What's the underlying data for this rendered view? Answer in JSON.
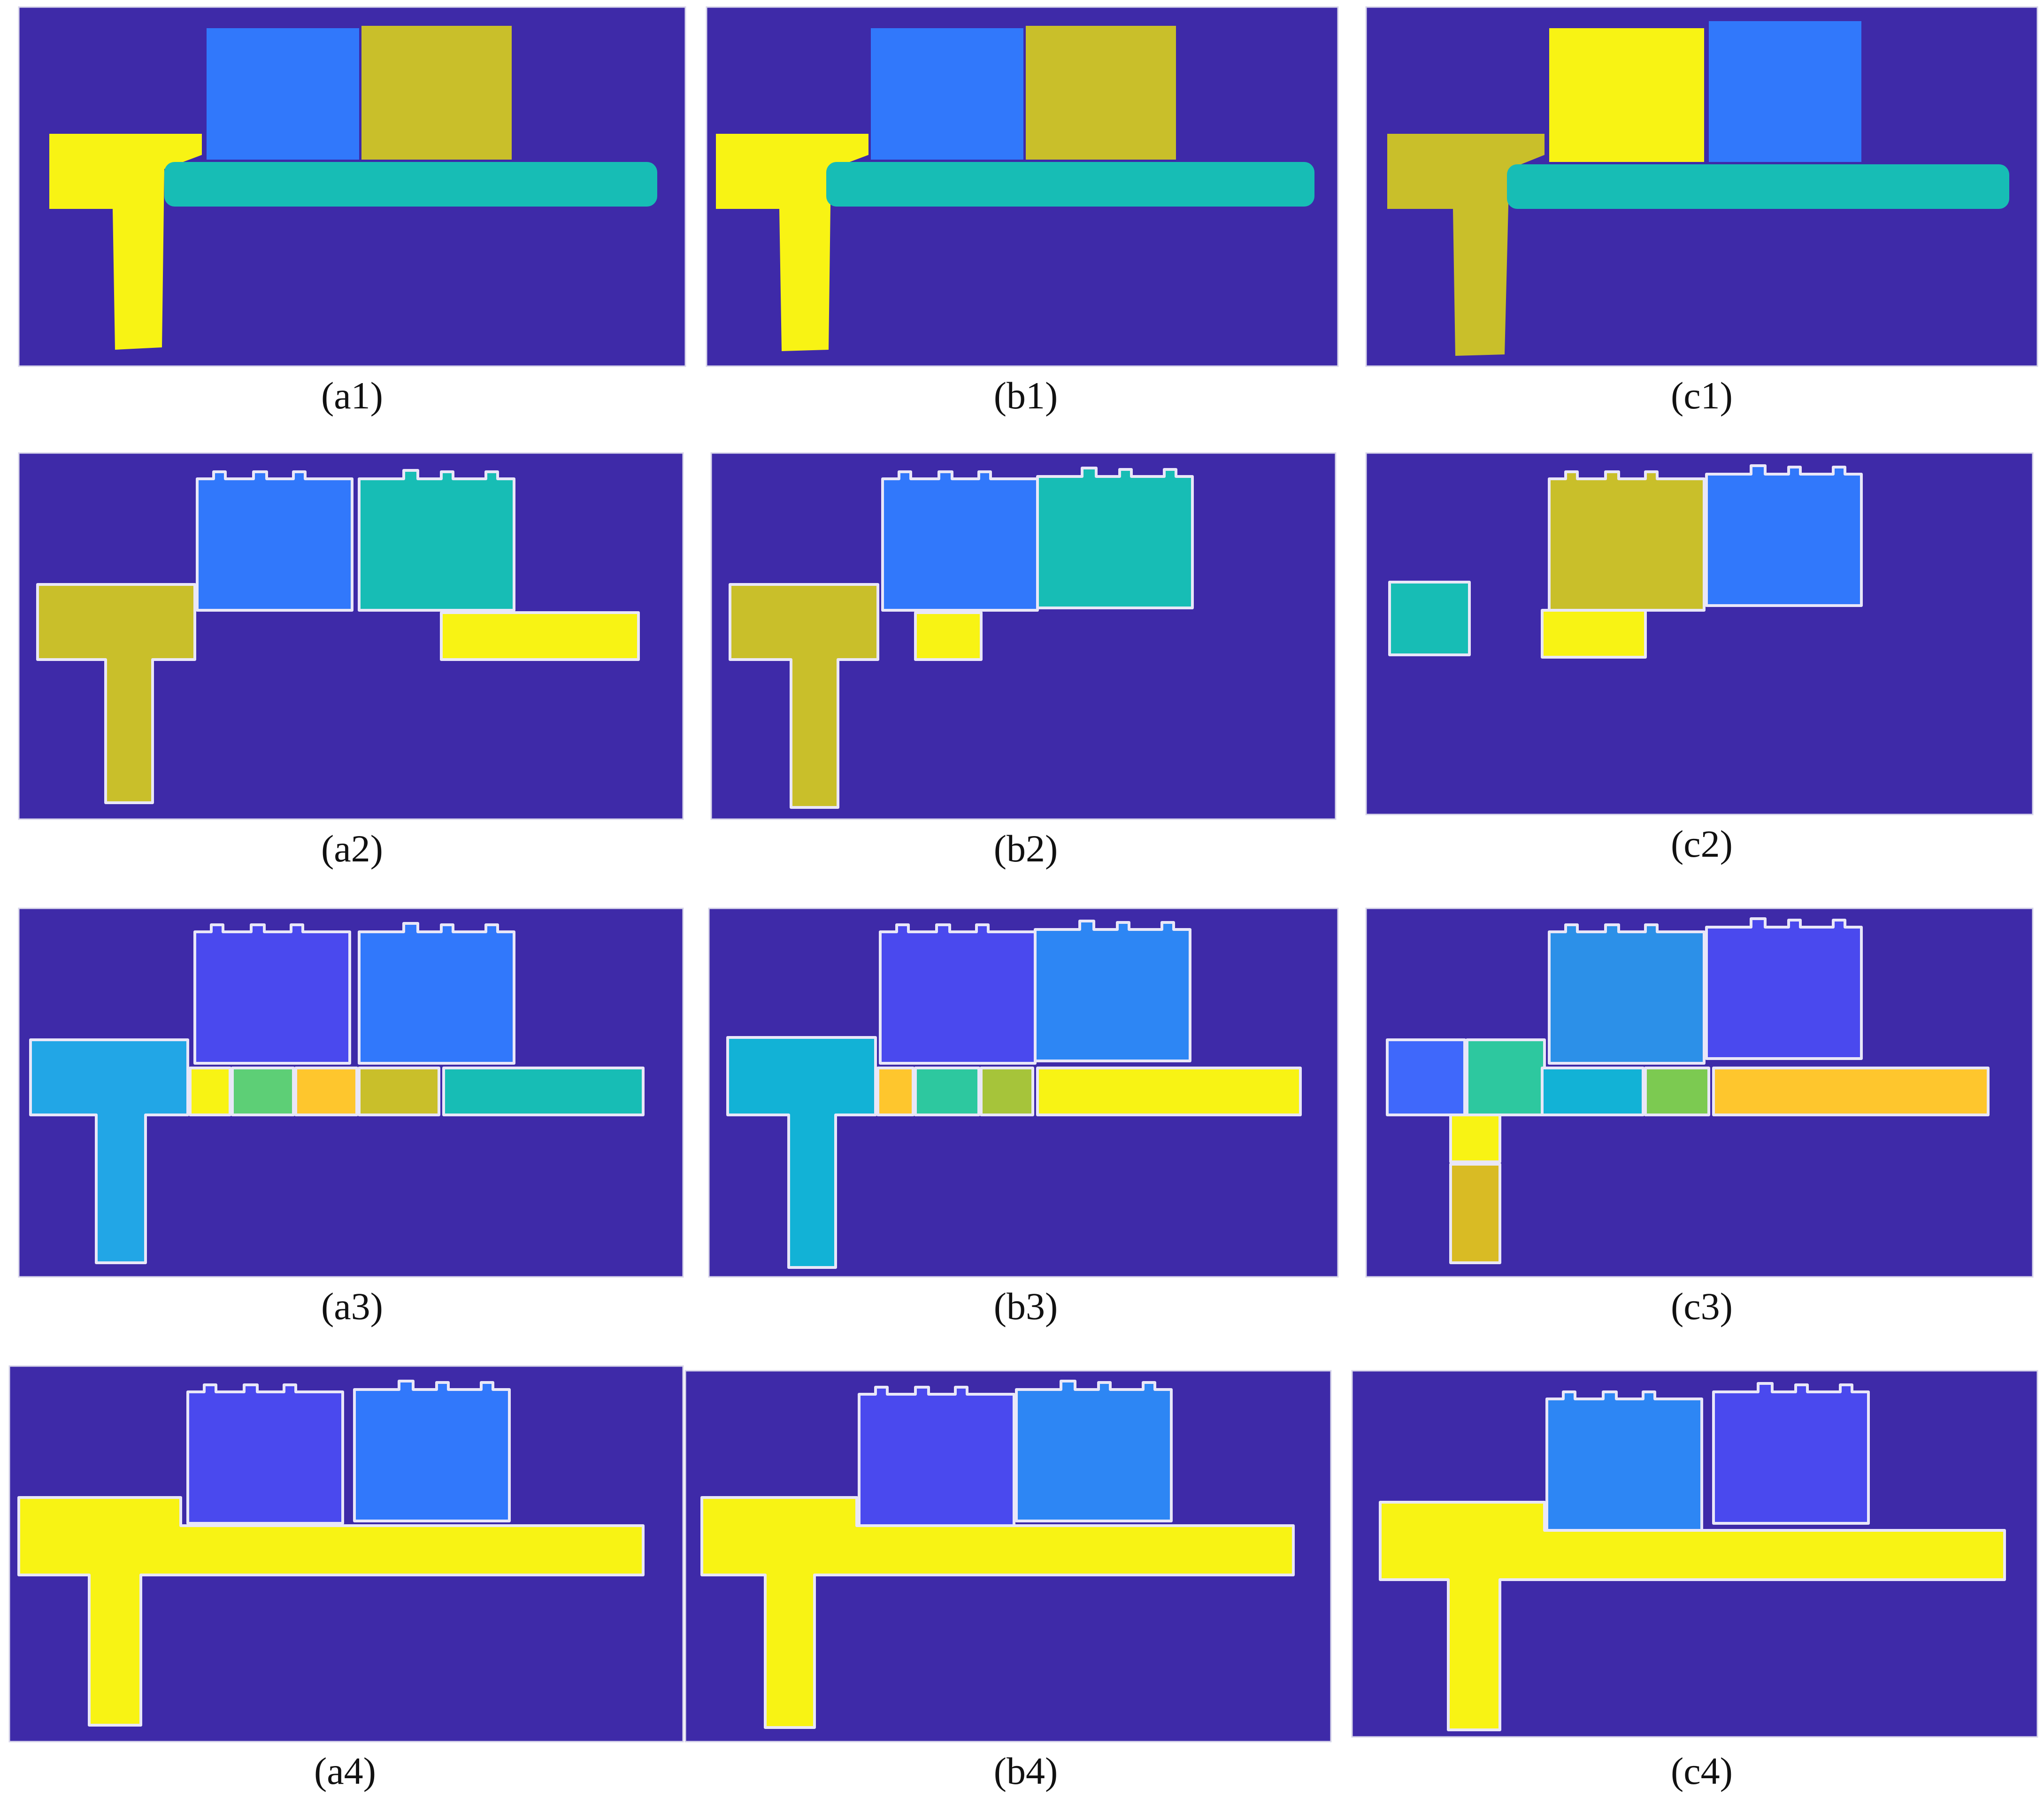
{
  "figure": {
    "background_color": "#ffffff",
    "map_background_color": "#3e2aa8",
    "colors": {
      "yellow": "#f8f314",
      "olive": "#c9bf2a",
      "blue": "#3178fb",
      "teal": "#17bdb5",
      "violet": "#4a49ee",
      "sky": "#22a6e6",
      "cyan": "#12b2d6",
      "green": "#5dcf76",
      "orange": "#fec62d",
      "gold": "#d9bb24",
      "aqua": "#2dc89f",
      "lime": "#a6c43a",
      "bright_green": "#7cca51",
      "royal_blue": "#3f68fb",
      "azure": "#2c90e8",
      "mid_blue": "#2d86f4"
    },
    "panels": [
      {
        "id": "a1",
        "caption": "(a1)"
      },
      {
        "id": "b1",
        "caption": "(b1)"
      },
      {
        "id": "c1",
        "caption": "(c1)"
      },
      {
        "id": "a2",
        "caption": "(a2)"
      },
      {
        "id": "b2",
        "caption": "(b2)"
      },
      {
        "id": "c2",
        "caption": "(c2)"
      },
      {
        "id": "a3",
        "caption": "(a3)"
      },
      {
        "id": "b3",
        "caption": "(b3)"
      },
      {
        "id": "c3",
        "caption": "(c3)"
      },
      {
        "id": "a4",
        "caption": "(a4)"
      },
      {
        "id": "b4",
        "caption": "(b4)"
      },
      {
        "id": "c4",
        "caption": "(c4)"
      }
    ]
  }
}
